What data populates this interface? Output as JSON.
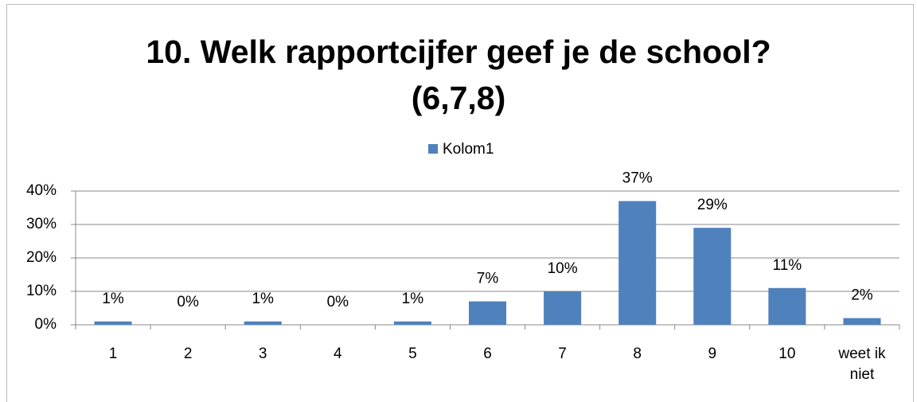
{
  "chart_data": {
    "type": "bar",
    "title": [
      "10. Welk rapportcijfer geef je de school?",
      "(6,7,8)"
    ],
    "categories": [
      "1",
      "2",
      "3",
      "4",
      "5",
      "6",
      "7",
      "8",
      "9",
      "10",
      "weet ik niet"
    ],
    "series": [
      {
        "name": "Kolom1",
        "color": "#4f81bd",
        "values": [
          1,
          0,
          1,
          0,
          1,
          7,
          10,
          37,
          29,
          11,
          2
        ],
        "value_labels": [
          "1%",
          "0%",
          "1%",
          "0%",
          "1%",
          "7%",
          "10%",
          "37%",
          "29%",
          "11%",
          "2%"
        ]
      }
    ],
    "ylim": [
      0,
      40
    ],
    "yticks": [
      {
        "value": 0,
        "label": "0%"
      },
      {
        "value": 10,
        "label": "10%"
      },
      {
        "value": 20,
        "label": "20%"
      },
      {
        "value": 30,
        "label": "30%"
      },
      {
        "value": 40,
        "label": "40%"
      }
    ],
    "grid": true,
    "legend": "top"
  }
}
